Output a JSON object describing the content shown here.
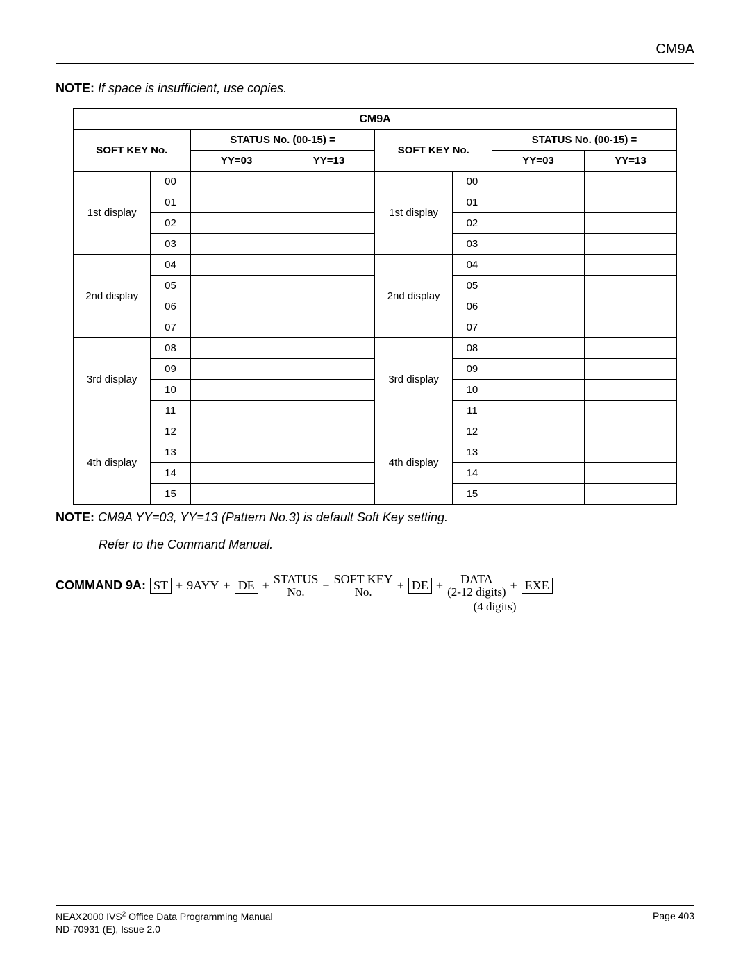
{
  "header": {
    "title": "CM9A"
  },
  "note1": {
    "label": "NOTE:",
    "text": "If space is insufficient, use copies."
  },
  "table": {
    "title": "CM9A",
    "colgroup1": "SOFT KEY No.",
    "colgroup2": "STATUS No. (00-15) =",
    "yy03": "YY=03",
    "yy13": "YY=13",
    "rows": [
      {
        "display": "1st display",
        "n": "00"
      },
      {
        "display": "",
        "n": "01"
      },
      {
        "display": "",
        "n": "02"
      },
      {
        "display": "",
        "n": "03"
      },
      {
        "display": "2nd display",
        "n": "04"
      },
      {
        "display": "",
        "n": "05"
      },
      {
        "display": "",
        "n": "06"
      },
      {
        "display": "",
        "n": "07"
      },
      {
        "display": "3rd display",
        "n": "08"
      },
      {
        "display": "",
        "n": "09"
      },
      {
        "display": "",
        "n": "10"
      },
      {
        "display": "",
        "n": "11"
      },
      {
        "display": "4th display",
        "n": "12"
      },
      {
        "display": "",
        "n": "13"
      },
      {
        "display": "",
        "n": "14"
      },
      {
        "display": "",
        "n": "15"
      }
    ]
  },
  "note2": {
    "label": "NOTE:",
    "text": "CM9A YY=03, YY=13 (Pattern No.3) is default Soft Key setting.",
    "refer": "Refer to the Command Manual."
  },
  "command": {
    "label": "COMMAND 9A:",
    "st": "ST",
    "nine": "9AYY",
    "de": "DE",
    "status_top": "STATUS",
    "status_bot": "No.",
    "softkey_top": "SOFT KEY",
    "softkey_bot": "No.",
    "data_top": "DATA",
    "data_bot": "(2-12 digits)",
    "exe": "EXE",
    "four_digits": "(4 digits)"
  },
  "footer": {
    "line1_a": "NEAX2000 IVS",
    "line1_sup": "2",
    "line1_b": " Office Data Programming Manual",
    "line2": "ND-70931 (E), Issue 2.0",
    "page": "Page 403"
  }
}
